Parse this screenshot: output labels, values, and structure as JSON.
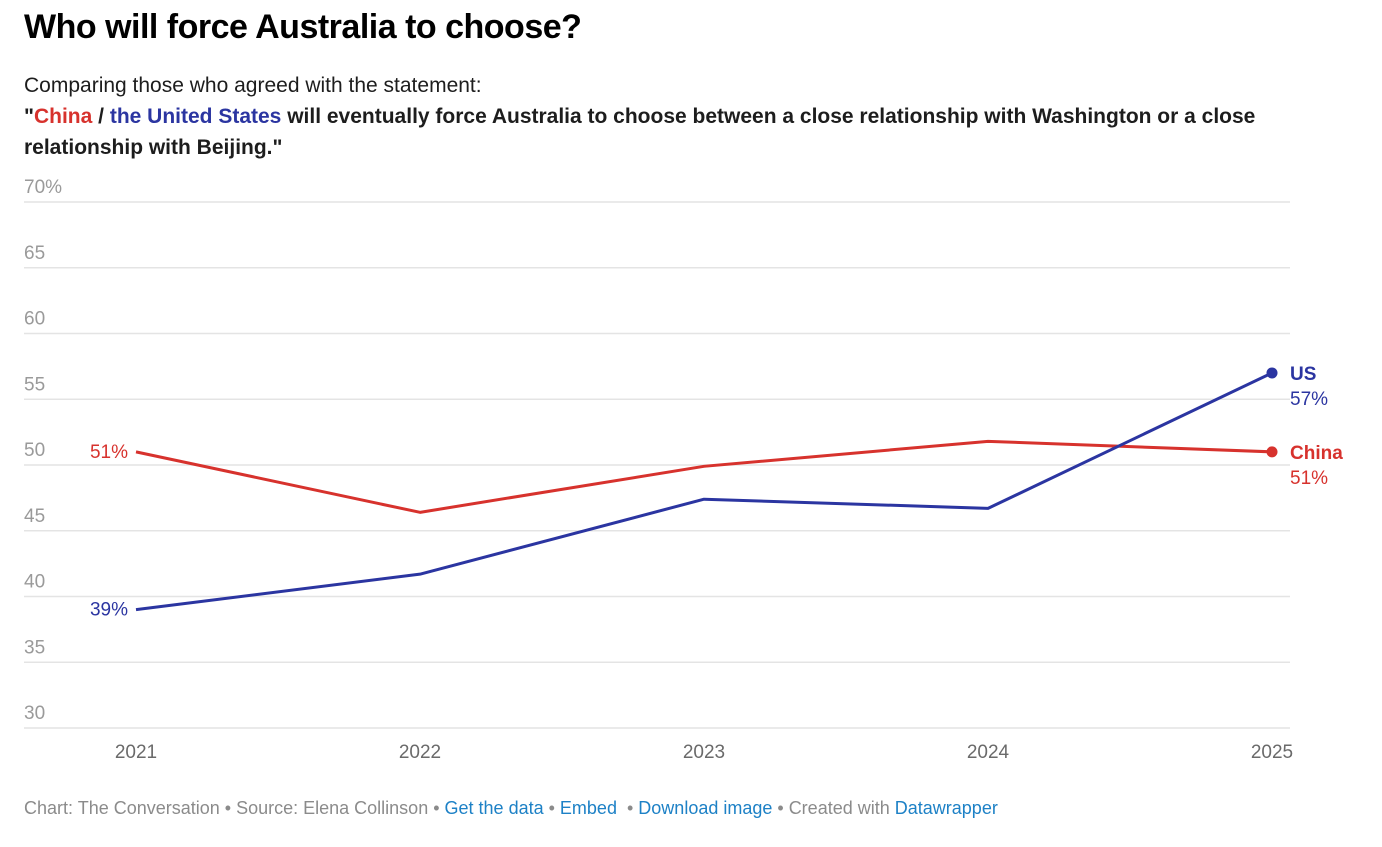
{
  "header": {
    "title": "Who will force Australia to choose?",
    "lead": "Comparing those who agreed with the statement:",
    "quote_open": "\"",
    "quote_china": "China",
    "quote_sep": " / ",
    "quote_us": "the United States",
    "quote_rest": " will eventually force Australia to choose between a close relationship with Washington or a close relationship with Beijing.\""
  },
  "colors": {
    "china": "#d7322d",
    "us": "#2b35a1",
    "link": "#1d81c6",
    "grid": "#e4e4e4",
    "tick": "#9a9a9a"
  },
  "chart_data": {
    "type": "line",
    "title": "Who will force Australia to choose?",
    "xlabel": "",
    "ylabel": "",
    "x": [
      "2021",
      "2022",
      "2023",
      "2024",
      "2025"
    ],
    "ylim": [
      30,
      70
    ],
    "yticks": [
      30,
      35,
      40,
      45,
      50,
      55,
      60,
      65,
      70
    ],
    "ytick_labels": [
      "30",
      "35",
      "40",
      "45",
      "50",
      "55",
      "60",
      "65",
      "70%"
    ],
    "grid": true,
    "legend": "direct labels at line ends (right)",
    "series": [
      {
        "name": "China",
        "color": "#d7322d",
        "values": [
          51,
          46.4,
          49.9,
          51.8,
          51
        ],
        "start_label": "51%",
        "end_name": "China",
        "end_label": "51%"
      },
      {
        "name": "US",
        "color": "#2b35a1",
        "values": [
          39,
          41.7,
          47.4,
          46.7,
          57
        ],
        "start_label": "39%",
        "end_name": "US",
        "end_label": "57%"
      }
    ]
  },
  "footer": {
    "chart_credit": "Chart: The Conversation",
    "sep": " • ",
    "source": "Source: Elena Collinson",
    "get_data": "Get the data",
    "embed": "Embed",
    "download": "Download image",
    "created_with": "Created with",
    "datawrapper": "Datawrapper"
  }
}
